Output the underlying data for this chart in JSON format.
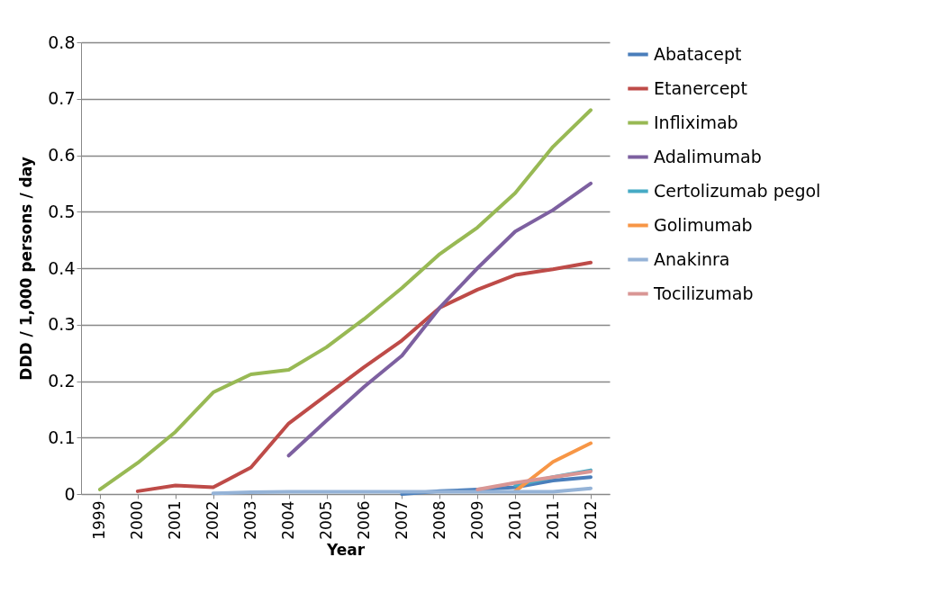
{
  "chart_data": {
    "type": "line",
    "xlabel": "Year",
    "ylabel": "DDD / 1,000 persons / day",
    "categories": [
      "1999",
      "2000",
      "2001",
      "2002",
      "2003",
      "2004",
      "2005",
      "2006",
      "2007",
      "2008",
      "2009",
      "2010",
      "2011",
      "2012"
    ],
    "series": [
      {
        "name": "Abatacept",
        "color": "#4a7ebb",
        "values": [
          null,
          null,
          null,
          null,
          null,
          null,
          null,
          null,
          0,
          0.005,
          0.008,
          0.012,
          0.024,
          0.03
        ]
      },
      {
        "name": "Etanercept",
        "color": "#be4b48",
        "values": [
          null,
          0.005,
          0.015,
          0.012,
          0.047,
          0.125,
          0.175,
          0.225,
          0.272,
          0.33,
          0.362,
          0.388,
          0.398,
          0.41
        ]
      },
      {
        "name": "Infliximab",
        "color": "#98b954",
        "values": [
          0.008,
          0.055,
          0.11,
          0.18,
          0.212,
          0.22,
          0.26,
          0.31,
          0.365,
          0.425,
          0.472,
          0.533,
          0.615,
          0.68
        ]
      },
      {
        "name": "Adalimumab",
        "color": "#7d60a0",
        "values": [
          null,
          null,
          null,
          null,
          null,
          0.068,
          0.13,
          0.19,
          0.245,
          0.33,
          0.4,
          0.465,
          0.503,
          0.55
        ]
      },
      {
        "name": "Certolizumab pegol",
        "color": "#46aac5",
        "values": [
          null,
          null,
          null,
          null,
          null,
          null,
          null,
          null,
          null,
          null,
          null,
          0.015,
          0.03,
          0.042
        ]
      },
      {
        "name": "Golimumab",
        "color": "#f79646",
        "values": [
          null,
          null,
          null,
          null,
          null,
          null,
          null,
          null,
          null,
          null,
          null,
          0.005,
          0.057,
          0.09
        ]
      },
      {
        "name": "Anakinra",
        "color": "#95b3d7",
        "values": [
          null,
          null,
          null,
          0.001,
          0.003,
          0.004,
          0.004,
          0.004,
          0.004,
          0.004,
          0.004,
          0.004,
          0.004,
          0.01
        ]
      },
      {
        "name": "Tocilizumab",
        "color": "#d99694",
        "values": [
          null,
          null,
          null,
          null,
          null,
          null,
          null,
          null,
          null,
          null,
          0.008,
          0.02,
          0.03,
          0.04
        ]
      }
    ],
    "ylim": [
      0,
      0.8
    ],
    "yticks": [
      0,
      0.1,
      0.2,
      0.3,
      0.4,
      0.5,
      0.6,
      0.7,
      0.8
    ],
    "grid": "y",
    "legend": "right",
    "marker": "none",
    "line_style": "solid"
  }
}
